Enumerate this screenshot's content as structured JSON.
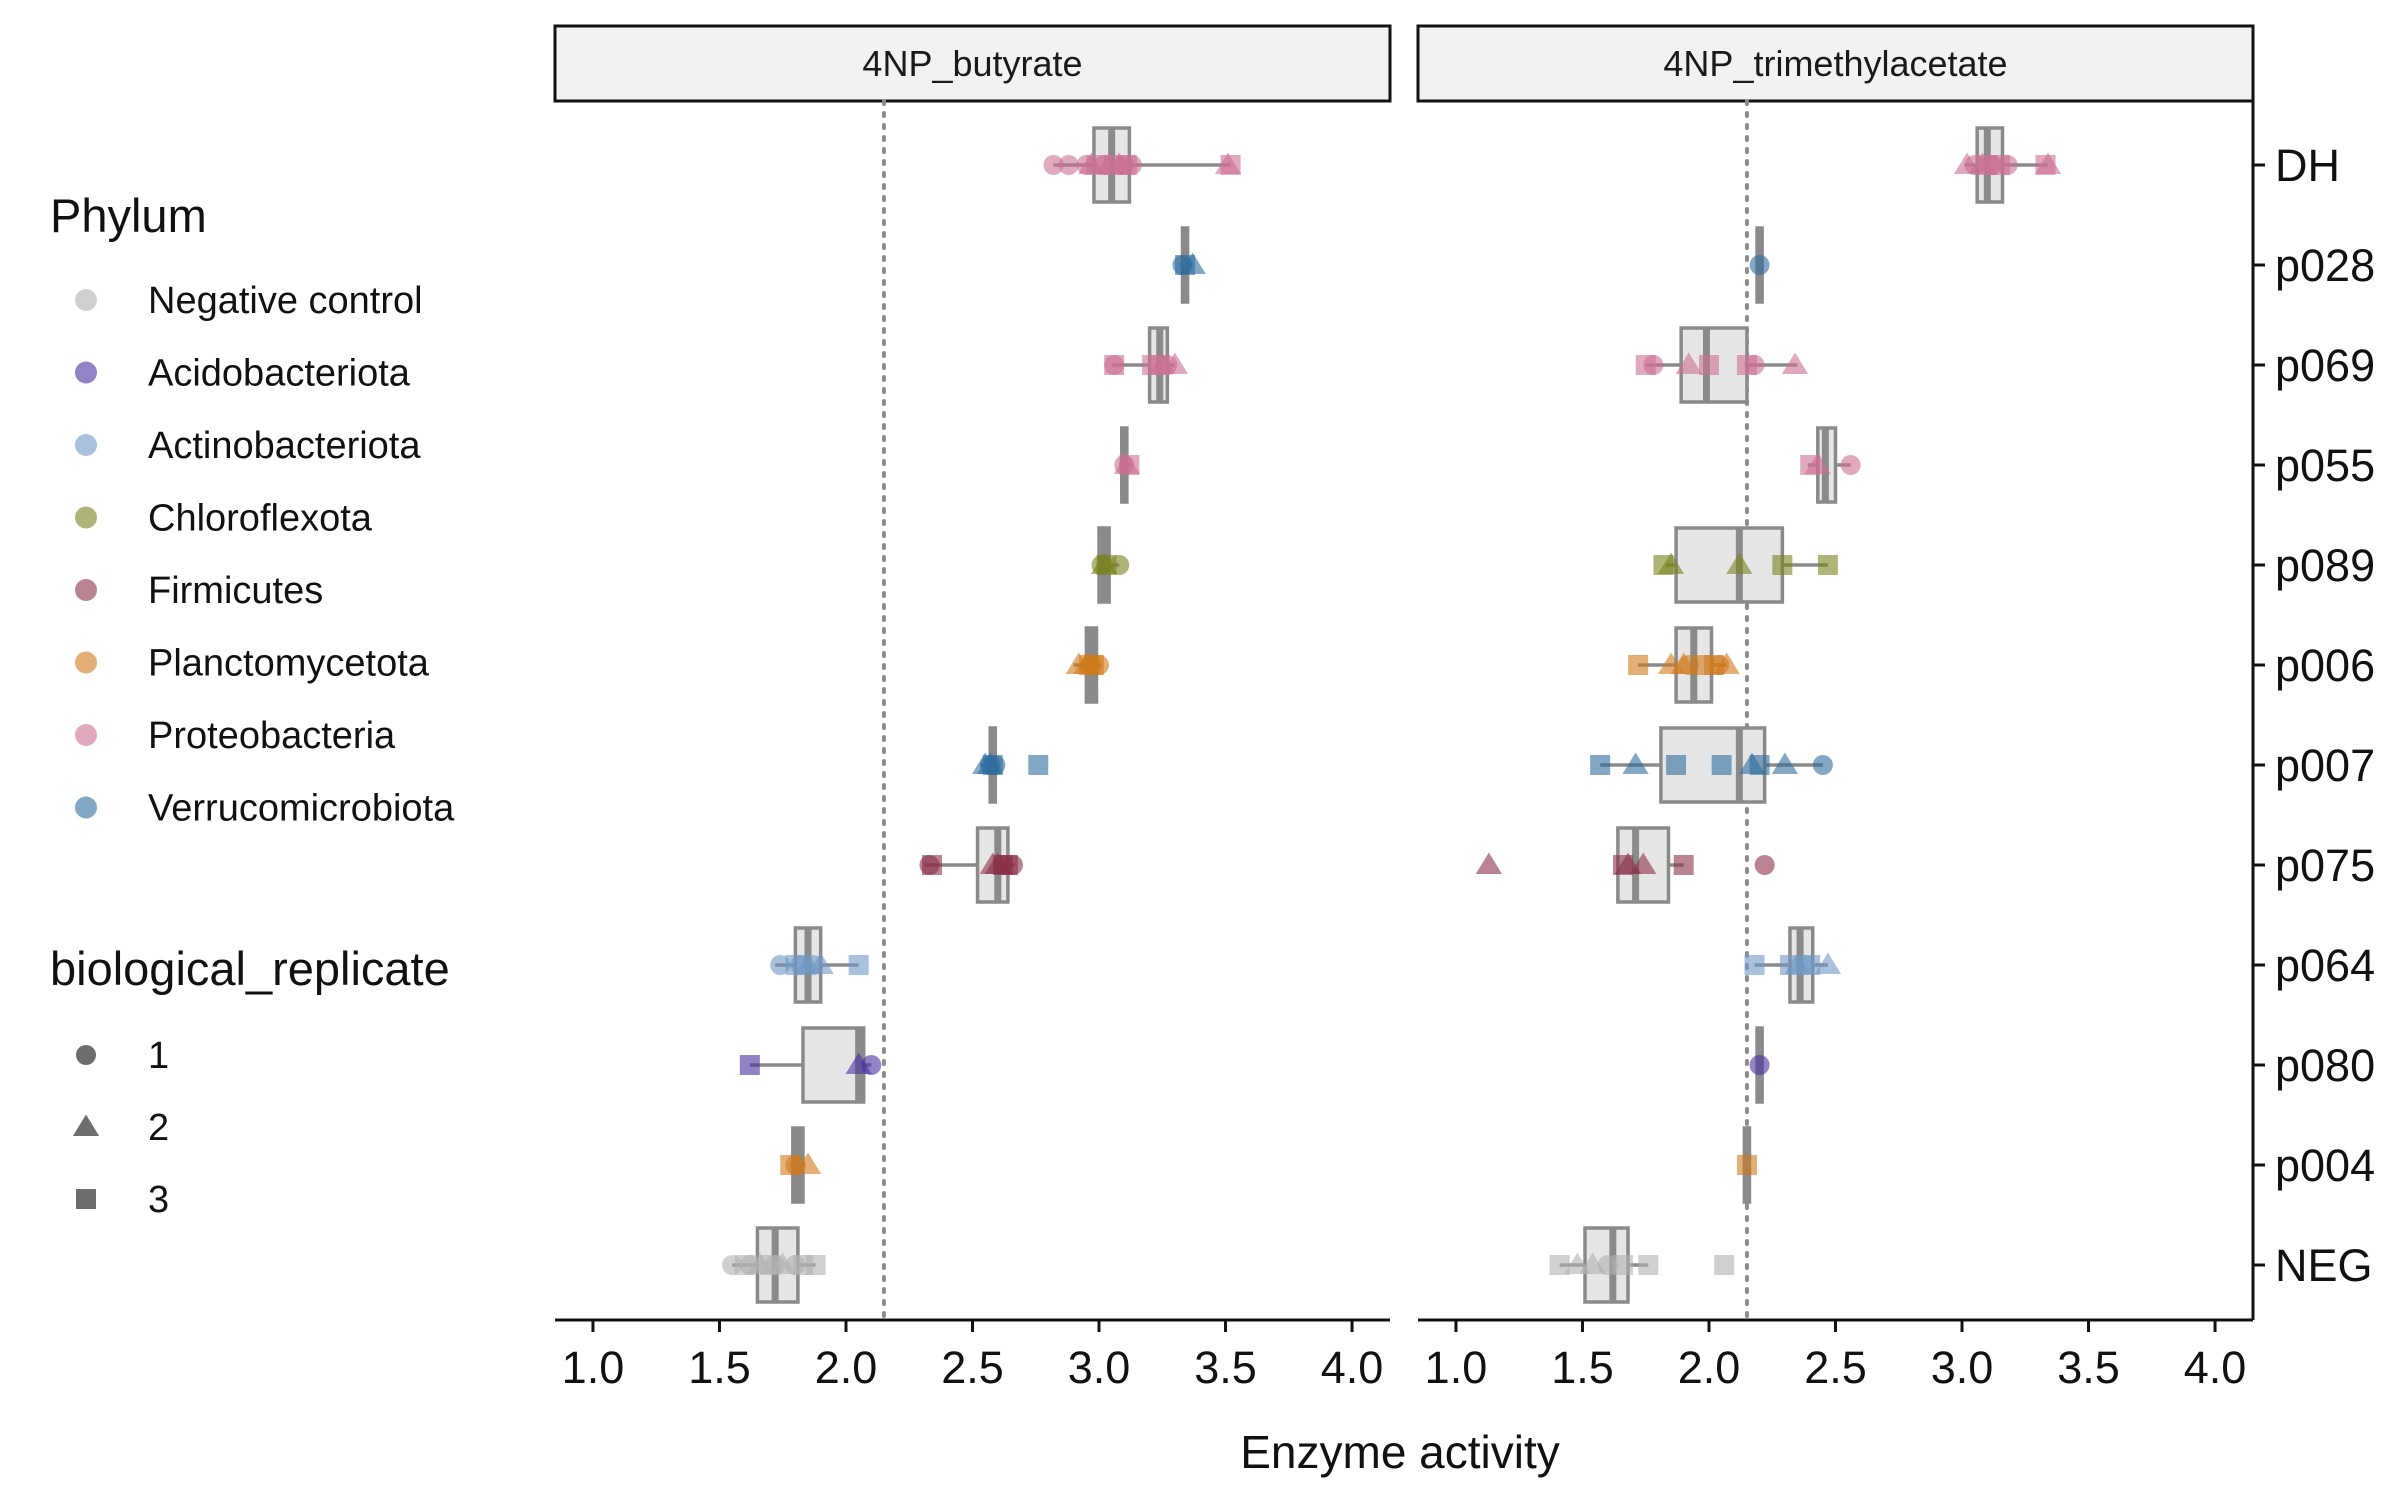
{
  "chart_data": {
    "type": "boxplot",
    "xlabel": "Enzyme activity",
    "ylabel": "",
    "xlim": [
      0.85,
      4.15
    ],
    "x_ticks": [
      "1.0",
      "1.5",
      "2.0",
      "2.5",
      "3.0",
      "3.5",
      "4.0"
    ],
    "reference_line": 2.15,
    "categories": [
      "DH",
      "p028",
      "p069",
      "p055",
      "p089",
      "p006",
      "p007",
      "p075",
      "p064",
      "p080",
      "p004",
      "NEG"
    ],
    "category_phylum": {
      "DH": "Proteobacteria",
      "p028": "Verrucomicrobiota",
      "p069": "Proteobacteria",
      "p055": "Proteobacteria",
      "p089": "Chloroflexota",
      "p006": "Planctomycetota",
      "p007": "Verrucomicrobiota",
      "p075": "Firmicutes",
      "p064": "Actinobacteriota",
      "p080": "Acidobacteriota",
      "p004": "Planctomycetota",
      "NEG": "Negative control"
    },
    "panels": [
      {
        "title": "4NP_butyrate",
        "groups": [
          {
            "category": "DH",
            "q1": 2.98,
            "median": 3.05,
            "q3": 3.12,
            "wmin": 2.82,
            "wmax": 3.52,
            "points": [
              [
                2.82,
                1
              ],
              [
                2.88,
                1
              ],
              [
                2.95,
                1
              ],
              [
                3.02,
                1
              ],
              [
                3.1,
                1
              ],
              [
                3.13,
                1
              ],
              [
                2.97,
                2
              ],
              [
                3.04,
                2
              ],
              [
                3.08,
                2
              ],
              [
                3.51,
                2
              ],
              [
                2.99,
                3
              ],
              [
                3.06,
                3
              ],
              [
                3.11,
                3
              ],
              [
                3.52,
                3
              ]
            ]
          },
          {
            "category": "p028",
            "q1": 3.33,
            "median": 3.34,
            "q3": 3.35,
            "wmin": 3.32,
            "wmax": 3.37,
            "points": [
              [
                3.33,
                1
              ],
              [
                3.37,
                2
              ],
              [
                3.34,
                3
              ]
            ]
          },
          {
            "category": "p069",
            "q1": 3.2,
            "median": 3.24,
            "q3": 3.27,
            "wmin": 3.05,
            "wmax": 3.3,
            "points": [
              [
                3.06,
                1
              ],
              [
                3.27,
                1
              ],
              [
                3.25,
                2
              ],
              [
                3.3,
                2
              ],
              [
                3.06,
                3
              ],
              [
                3.21,
                3
              ],
              [
                3.24,
                3
              ]
            ]
          },
          {
            "category": "p055",
            "q1": 3.09,
            "median": 3.1,
            "q3": 3.11,
            "wmin": 3.08,
            "wmax": 3.13,
            "points": [
              [
                3.1,
                1
              ],
              [
                3.11,
                2
              ],
              [
                3.12,
                3
              ]
            ]
          },
          {
            "category": "p089",
            "q1": 3.0,
            "median": 3.02,
            "q3": 3.04,
            "wmin": 3.0,
            "wmax": 3.08,
            "points": [
              [
                3.01,
                1
              ],
              [
                3.08,
                1
              ],
              [
                3.02,
                2
              ],
              [
                3.03,
                3
              ]
            ]
          },
          {
            "category": "p006",
            "q1": 2.95,
            "median": 2.97,
            "q3": 2.99,
            "wmin": 2.9,
            "wmax": 3.01,
            "points": [
              [
                2.97,
                1
              ],
              [
                3.0,
                1
              ],
              [
                2.92,
                2
              ],
              [
                2.95,
                2
              ],
              [
                2.96,
                3
              ],
              [
                2.98,
                3
              ]
            ]
          },
          {
            "category": "p007",
            "q1": 2.57,
            "median": 2.58,
            "q3": 2.59,
            "wmin": 2.53,
            "wmax": 2.6,
            "points": [
              [
                2.57,
                1
              ],
              [
                2.59,
                1
              ],
              [
                2.55,
                2
              ],
              [
                2.57,
                2
              ],
              [
                2.58,
                3
              ],
              [
                2.76,
                3
              ]
            ]
          },
          {
            "category": "p075",
            "q1": 2.52,
            "median": 2.6,
            "q3": 2.64,
            "wmin": 2.31,
            "wmax": 2.67,
            "points": [
              [
                2.33,
                1
              ],
              [
                2.62,
                1
              ],
              [
                2.66,
                1
              ],
              [
                2.58,
                2
              ],
              [
                2.6,
                2
              ],
              [
                2.34,
                3
              ],
              [
                2.62,
                3
              ],
              [
                2.64,
                3
              ]
            ]
          },
          {
            "category": "p064",
            "q1": 1.8,
            "median": 1.85,
            "q3": 1.9,
            "wmin": 1.72,
            "wmax": 2.05,
            "points": [
              [
                1.74,
                1
              ],
              [
                1.82,
                1
              ],
              [
                1.87,
                1
              ],
              [
                1.85,
                2
              ],
              [
                1.9,
                2
              ],
              [
                1.8,
                3
              ],
              [
                2.05,
                3
              ]
            ]
          },
          {
            "category": "p080",
            "q1": 1.83,
            "median": 2.05,
            "q3": 2.07,
            "wmin": 1.62,
            "wmax": 2.1,
            "points": [
              [
                2.1,
                1
              ],
              [
                2.05,
                2
              ],
              [
                1.62,
                3
              ]
            ]
          },
          {
            "category": "p004",
            "q1": 1.79,
            "median": 1.81,
            "q3": 1.83,
            "wmin": 1.78,
            "wmax": 1.84,
            "points": [
              [
                1.8,
                1
              ],
              [
                1.85,
                2
              ],
              [
                1.78,
                3
              ]
            ]
          },
          {
            "category": "NEG",
            "q1": 1.65,
            "median": 1.72,
            "q3": 1.81,
            "wmin": 1.55,
            "wmax": 1.88,
            "points": [
              [
                1.55,
                1
              ],
              [
                1.62,
                1
              ],
              [
                1.72,
                1
              ],
              [
                1.8,
                1
              ],
              [
                1.66,
                2
              ],
              [
                1.75,
                2
              ],
              [
                1.6,
                3
              ],
              [
                1.7,
                3
              ],
              [
                1.83,
                3
              ],
              [
                1.88,
                3
              ]
            ]
          }
        ]
      },
      {
        "title": "4NP_trimethylacetate",
        "groups": [
          {
            "category": "DH",
            "q1": 3.06,
            "median": 3.1,
            "q3": 3.16,
            "wmin": 3.01,
            "wmax": 3.34,
            "points": [
              [
                3.05,
                1
              ],
              [
                3.12,
                1
              ],
              [
                3.18,
                1
              ],
              [
                3.02,
                2
              ],
              [
                3.08,
                2
              ],
              [
                3.34,
                2
              ],
              [
                3.1,
                3
              ],
              [
                3.15,
                3
              ],
              [
                3.33,
                3
              ]
            ]
          },
          {
            "category": "p028",
            "q1": 2.19,
            "median": 2.2,
            "q3": 2.21,
            "wmin": 2.19,
            "wmax": 2.21,
            "points": [
              [
                2.2,
                1
              ]
            ]
          },
          {
            "category": "p069",
            "q1": 1.89,
            "median": 1.99,
            "q3": 2.15,
            "wmin": 1.75,
            "wmax": 2.35,
            "points": [
              [
                1.78,
                1
              ],
              [
                2.18,
                1
              ],
              [
                1.92,
                2
              ],
              [
                2.34,
                2
              ],
              [
                1.75,
                3
              ],
              [
                2.0,
                3
              ],
              [
                2.15,
                3
              ]
            ]
          },
          {
            "category": "p055",
            "q1": 2.43,
            "median": 2.46,
            "q3": 2.5,
            "wmin": 2.39,
            "wmax": 2.56,
            "points": [
              [
                2.56,
                1
              ],
              [
                2.43,
                2
              ],
              [
                2.4,
                3
              ]
            ]
          },
          {
            "category": "p089",
            "q1": 1.87,
            "median": 2.12,
            "q3": 2.29,
            "wmin": 1.83,
            "wmax": 2.47,
            "points": [
              [
                1.85,
                2
              ],
              [
                2.12,
                2
              ],
              [
                1.82,
                3
              ],
              [
                2.29,
                3
              ],
              [
                2.47,
                3
              ]
            ]
          },
          {
            "category": "p006",
            "q1": 1.87,
            "median": 1.94,
            "q3": 2.01,
            "wmin": 1.72,
            "wmax": 2.07,
            "points": [
              [
                1.92,
                1
              ],
              [
                2.04,
                1
              ],
              [
                1.85,
                2
              ],
              [
                1.9,
                2
              ],
              [
                2.07,
                2
              ],
              [
                1.72,
                3
              ],
              [
                1.98,
                3
              ],
              [
                2.02,
                3
              ]
            ]
          },
          {
            "category": "p007",
            "q1": 1.81,
            "median": 2.12,
            "q3": 2.22,
            "wmin": 1.57,
            "wmax": 2.45,
            "points": [
              [
                2.45,
                1
              ],
              [
                1.71,
                2
              ],
              [
                2.17,
                2
              ],
              [
                2.3,
                2
              ],
              [
                1.57,
                3
              ],
              [
                1.87,
                3
              ],
              [
                2.05,
                3
              ],
              [
                2.2,
                3
              ]
            ]
          },
          {
            "category": "p075",
            "q1": 1.64,
            "median": 1.71,
            "q3": 1.84,
            "wmin": 1.64,
            "wmax": 1.9,
            "points": [
              [
                2.22,
                1
              ],
              [
                1.13,
                2
              ],
              [
                1.68,
                2
              ],
              [
                1.74,
                2
              ],
              [
                1.66,
                3
              ],
              [
                1.9,
                3
              ]
            ]
          },
          {
            "category": "p064",
            "q1": 2.32,
            "median": 2.36,
            "q3": 2.41,
            "wmin": 2.18,
            "wmax": 2.47,
            "points": [
              [
                2.38,
                1
              ],
              [
                2.35,
                2
              ],
              [
                2.47,
                2
              ],
              [
                2.18,
                3
              ],
              [
                2.32,
                3
              ],
              [
                2.4,
                3
              ]
            ]
          },
          {
            "category": "p080",
            "q1": 2.19,
            "median": 2.2,
            "q3": 2.21,
            "wmin": 2.19,
            "wmax": 2.21,
            "points": [
              [
                2.2,
                1
              ]
            ]
          },
          {
            "category": "p004",
            "q1": 2.14,
            "median": 2.15,
            "q3": 2.16,
            "wmin": 2.14,
            "wmax": 2.16,
            "points": [
              [
                2.15,
                3
              ]
            ]
          },
          {
            "category": "NEG",
            "q1": 1.51,
            "median": 1.62,
            "q3": 1.68,
            "wmin": 1.41,
            "wmax": 1.76,
            "points": [
              [
                1.6,
                1
              ],
              [
                1.48,
                2
              ],
              [
                1.54,
                2
              ],
              [
                1.41,
                3
              ],
              [
                1.66,
                3
              ],
              [
                1.76,
                3
              ],
              [
                2.06,
                3
              ]
            ]
          }
        ]
      }
    ],
    "legend": {
      "phylum": {
        "title": "Phylum",
        "items": [
          {
            "label": " Negative control",
            "color": "#b0b0b0"
          },
          {
            "label": "Acidobacteriota",
            "color": "#4a2fa0"
          },
          {
            "label": "Actinobacteriota",
            "color": "#6f97c4"
          },
          {
            "label": "Chloroflexota",
            "color": "#7a8420"
          },
          {
            "label": "Firmicutes",
            "color": "#8a3048"
          },
          {
            "label": "Planctomycetota",
            "color": "#d07a1a"
          },
          {
            "label": "Proteobacteria",
            "color": "#cc6f92"
          },
          {
            "label": "Verrucomicrobiota",
            "color": "#2f6e9e"
          }
        ]
      },
      "replicate": {
        "title": "biological_replicate",
        "items": [
          {
            "label": "1",
            "shape": "circle"
          },
          {
            "label": "2",
            "shape": "triangle"
          },
          {
            "label": "3",
            "shape": "square"
          }
        ]
      }
    }
  }
}
